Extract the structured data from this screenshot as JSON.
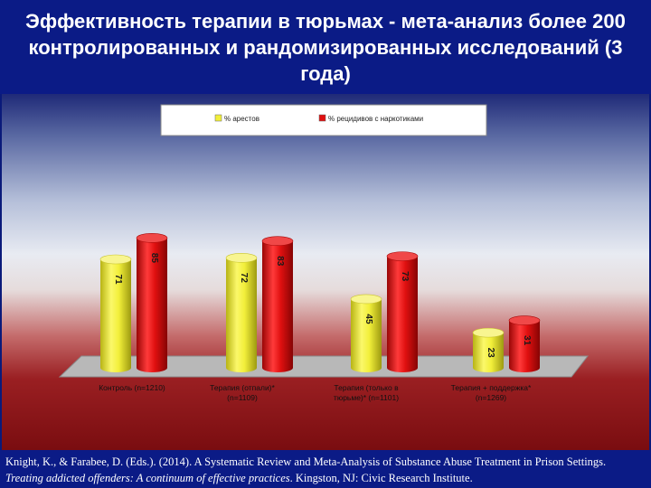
{
  "header": {
    "title": "Эффективность терапии в тюрьмах - мета-анализ более 200 контролированных и рандомизированных исследований (3 года)"
  },
  "chart_data": {
    "type": "bar",
    "categories": [
      [
        "Контроль (n=1210)"
      ],
      [
        "Терапия (отпали)*",
        "(n=1109)"
      ],
      [
        "Терапия (только в",
        "тюрьме)* (n=1101)"
      ],
      [
        "Терапия + поддержка*",
        "(n=1269)"
      ]
    ],
    "series": [
      {
        "name": "% арестов",
        "values": [
          71,
          72,
          45,
          23
        ],
        "color": "#f2ef3a"
      },
      {
        "name": "% рецидивов с наркотиками",
        "values": [
          85,
          83,
          73,
          31
        ],
        "color": "#e01010"
      }
    ],
    "ylim": [
      0,
      100
    ],
    "legend": "top"
  },
  "footer": {
    "text_plain": "Knight, K., & Farabee, D. (Eds.). (2014). A Systematic Review and Meta-Analysis of Substance Abuse Treatment in Prison Settings. ",
    "text_italic": "Treating addicted offenders: A continuum of effective practices",
    "text_end": ". Kingston, NJ: Civic Research Institute."
  }
}
